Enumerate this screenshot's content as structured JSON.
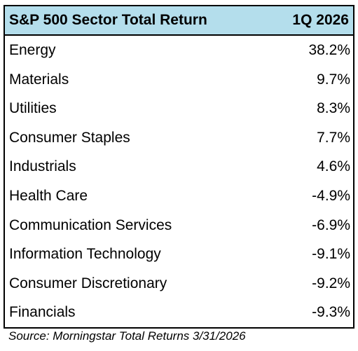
{
  "colors": {
    "header_background": "#b4deec",
    "border": "#000000",
    "text": "#000000",
    "background": "#ffffff"
  },
  "chart_data": {
    "type": "table",
    "title": "S&P 500 Sector Total Return",
    "columns": [
      "S&P 500 Sector Total Return",
      "1Q 2026"
    ],
    "period": "1Q 2026",
    "rows": [
      {
        "sector": "Energy",
        "value": "38.2%",
        "number": 38.2
      },
      {
        "sector": "Materials",
        "value": "9.7%",
        "number": 9.7
      },
      {
        "sector": "Utilities",
        "value": "8.3%",
        "number": 8.3
      },
      {
        "sector": "Consumer Staples",
        "value": "7.7%",
        "number": 7.7
      },
      {
        "sector": "Industrials",
        "value": "4.6%",
        "number": 4.6
      },
      {
        "sector": "Health Care",
        "value": "-4.9%",
        "number": -4.9
      },
      {
        "sector": "Communication Services",
        "value": "-6.9%",
        "number": -6.9
      },
      {
        "sector": "Information Technology",
        "value": "-9.1%",
        "number": -9.1
      },
      {
        "sector": "Consumer Discretionary",
        "value": "-9.2%",
        "number": -9.2
      },
      {
        "sector": "Financials",
        "value": "-9.3%",
        "number": -9.3
      }
    ],
    "source": "Source:  Morningstar Total Returns 3/31/2026"
  }
}
